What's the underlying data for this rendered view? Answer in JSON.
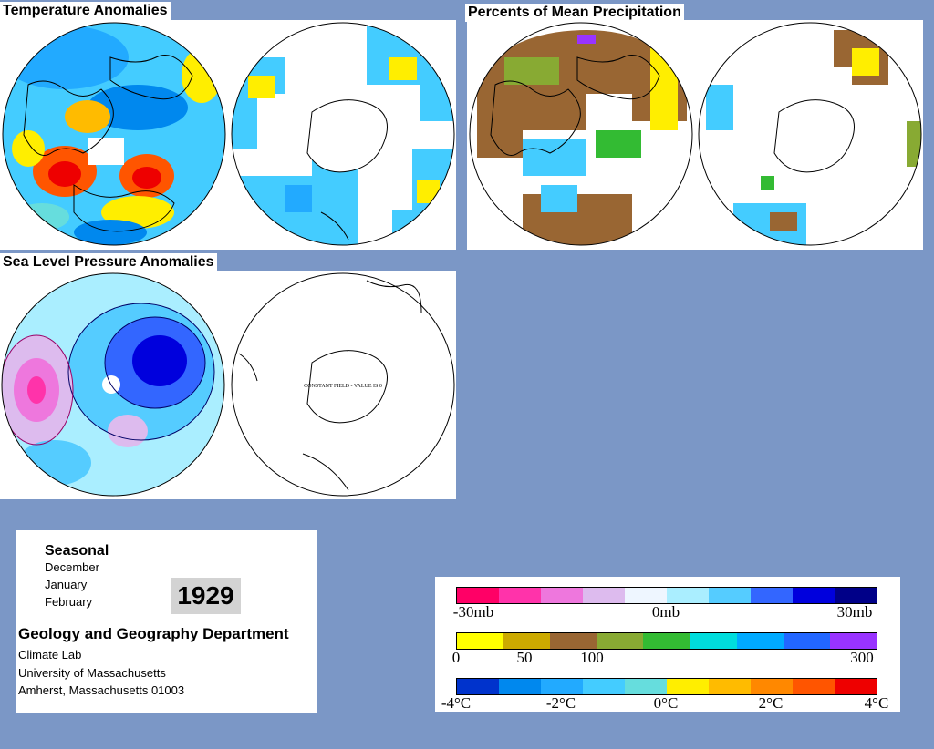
{
  "panels": {
    "temperature": {
      "title": "Temperature Anomalies"
    },
    "precipitation": {
      "title": "Percents of Mean Precipitation"
    },
    "pressure": {
      "title": "Sea Level Pressure Anomalies"
    }
  },
  "pressure_south_note": "CONSTANT FIELD - VALUE IS 0",
  "info": {
    "season": "Seasonal",
    "months": [
      "December",
      "January",
      "February"
    ],
    "year": "1929",
    "department": "Geology and Geography Department",
    "lab": "Climate Lab",
    "university": "University of Massachusetts",
    "address": "Amherst, Massachusetts 01003"
  },
  "legends": {
    "pressure": {
      "labels": [
        "-30mb",
        "0mb",
        "30mb"
      ],
      "colors": [
        "#ff0066",
        "#ff33aa",
        "#ee77dd",
        "#ddbbee",
        "#eef6ff",
        "#aaeeff",
        "#55ccff",
        "#3366ff",
        "#0000dd",
        "#000088"
      ]
    },
    "precipitation": {
      "labels": [
        "0",
        "50",
        "100",
        "300"
      ],
      "colors": [
        "#ffff00",
        "#ccaa00",
        "#996633",
        "#88aa33",
        "#33bb33",
        "#00dddd",
        "#00aaff",
        "#2266ff",
        "#9933ff"
      ]
    },
    "temperature": {
      "labels": [
        "-4°C",
        "-2°C",
        "0°C",
        "2°C",
        "4°C"
      ],
      "colors": [
        "#0033cc",
        "#0088ee",
        "#22aaff",
        "#44ccff",
        "#66dddd",
        "#ffee00",
        "#ffbb00",
        "#ff8800",
        "#ff5500",
        "#ee0000"
      ]
    }
  }
}
